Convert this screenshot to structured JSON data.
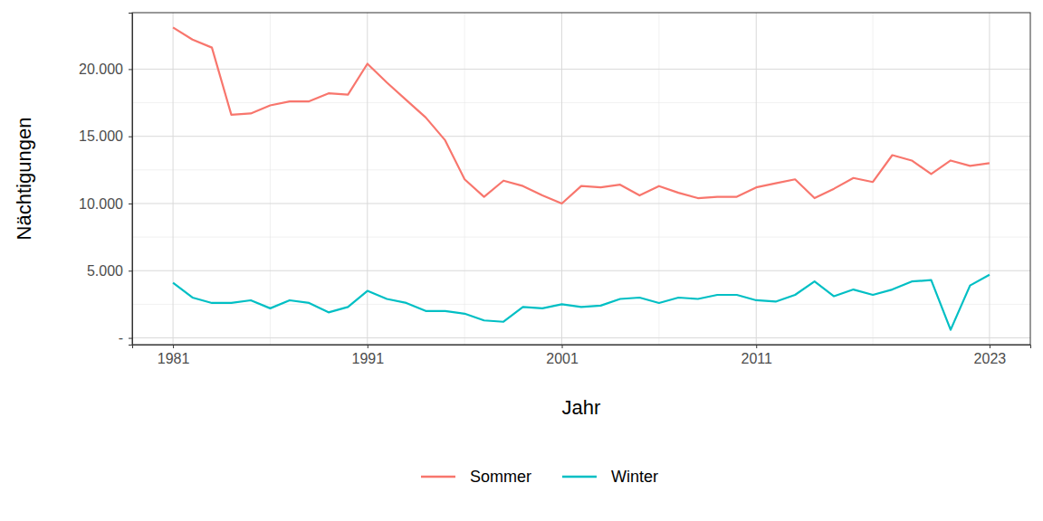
{
  "chart_data": {
    "type": "line",
    "x_label": "Jahr",
    "y_label": "Nächtigungen",
    "x": [
      1981,
      1982,
      1983,
      1984,
      1985,
      1986,
      1987,
      1988,
      1989,
      1990,
      1991,
      1992,
      1993,
      1994,
      1995,
      1996,
      1997,
      1998,
      1999,
      2000,
      2001,
      2002,
      2003,
      2004,
      2005,
      2006,
      2007,
      2008,
      2009,
      2010,
      2011,
      2012,
      2013,
      2014,
      2015,
      2016,
      2017,
      2018,
      2019,
      2020,
      2021,
      2022,
      2023
    ],
    "series": [
      {
        "name": "Sommer",
        "color": "#F8766D",
        "values": [
          23100,
          22200,
          21600,
          16600,
          16700,
          17300,
          17600,
          17600,
          18200,
          18100,
          20400,
          19000,
          17700,
          16400,
          14700,
          11800,
          10500,
          11700,
          11300,
          10600,
          10000,
          11300,
          11200,
          11400,
          10600,
          11300,
          10800,
          10400,
          10500,
          10500,
          11200,
          11500,
          11800,
          10400,
          11100,
          11900,
          11600,
          13600,
          13200,
          12200,
          13200,
          12800,
          13000
        ]
      },
      {
        "name": "Winter",
        "color": "#00BFC4",
        "values": [
          4100,
          3000,
          2600,
          2600,
          2800,
          2200,
          2800,
          2600,
          1900,
          2300,
          3500,
          2900,
          2600,
          2000,
          2000,
          1800,
          1300,
          1200,
          2300,
          2200,
          2500,
          2300,
          2400,
          2900,
          3000,
          2600,
          3000,
          2900,
          3200,
          3200,
          2800,
          2700,
          3200,
          4200,
          3100,
          3600,
          3200,
          3600,
          4200,
          4300,
          600,
          3900,
          4700
        ]
      }
    ],
    "xlim": [
      1978.9,
      2025.1
    ],
    "xticks": [
      1981,
      1991,
      2001,
      2011,
      2023
    ],
    "ylim": [
      -500,
      24200
    ],
    "yticks": [
      {
        "value": 0,
        "label": "-"
      },
      {
        "value": 5000,
        "label": "5.000"
      },
      {
        "value": 10000,
        "label": "10.000"
      },
      {
        "value": 15000,
        "label": "15.000"
      },
      {
        "value": 20000,
        "label": "20.000"
      }
    ],
    "grid": true,
    "legend": "bottom"
  }
}
